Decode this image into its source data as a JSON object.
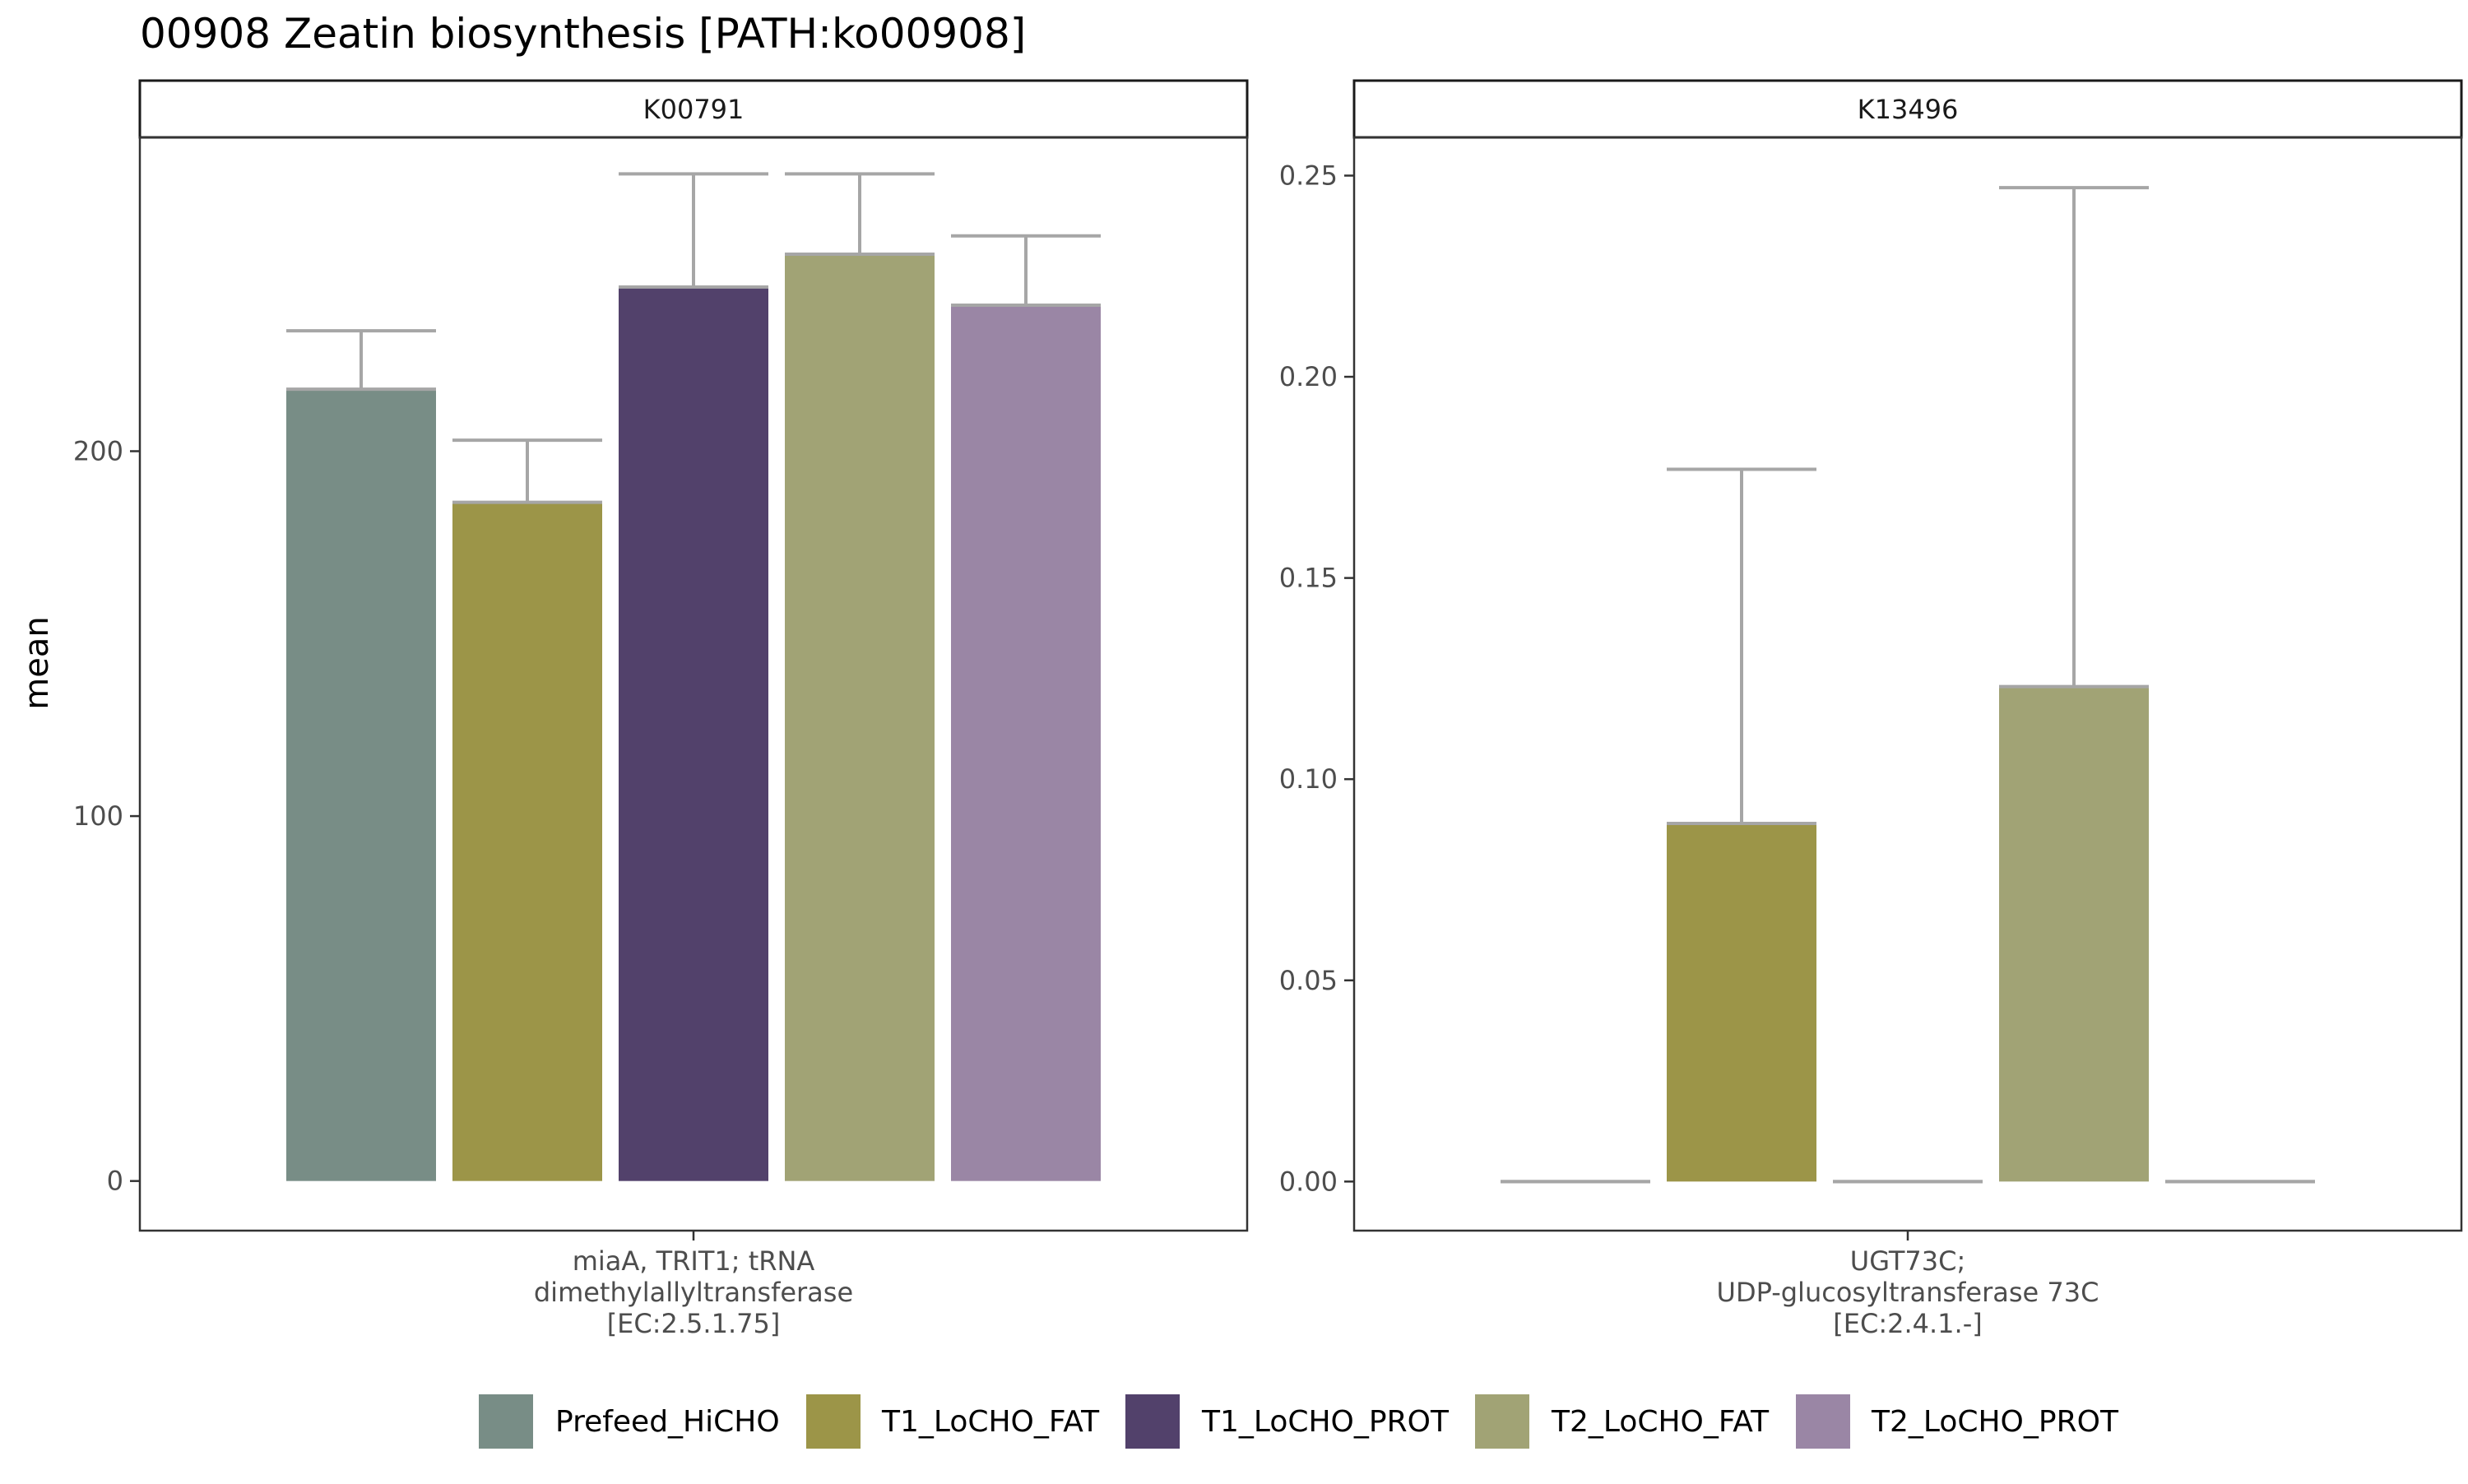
{
  "chart_data": {
    "type": "bar",
    "title": "00908 Zeatin biosynthesis [PATH:ko00908]",
    "ylabel": "mean",
    "legend_position": "bottom",
    "grid": false,
    "series_names": [
      "Prefeed_HiCHO",
      "T1_LoCHO_FAT",
      "T1_LoCHO_PROT",
      "T2_LoCHO_FAT",
      "T2_LoCHO_PROT"
    ],
    "colors": [
      "#788d86",
      "#9c9548",
      "#52416b",
      "#a1a375",
      "#9a86a5"
    ],
    "panels": [
      {
        "strip": "K00791",
        "xlabel": [
          "miaA, TRIT1; tRNA",
          "dimethylallyltransferase",
          "[EC:2.5.1.75]"
        ],
        "ylim": [
          -13.6,
          286
        ],
        "yticks": [
          0,
          100,
          200
        ],
        "values": [
          217,
          186,
          245,
          254,
          240
        ],
        "errors": [
          16,
          17,
          31,
          22,
          19
        ]
      },
      {
        "strip": "K13496",
        "xlabel": [
          "UGT73C;",
          "UDP-glucosyltransferase 73C",
          "[EC:2.4.1.-]"
        ],
        "ylim": [
          -0.0122,
          0.2595
        ],
        "yticks": [
          0.0,
          0.05,
          0.1,
          0.15,
          0.2,
          0.25
        ],
        "values": [
          0,
          0.089,
          0,
          0.123,
          0
        ],
        "errors": [
          0,
          0.088,
          0,
          0.124,
          0
        ]
      }
    ]
  }
}
